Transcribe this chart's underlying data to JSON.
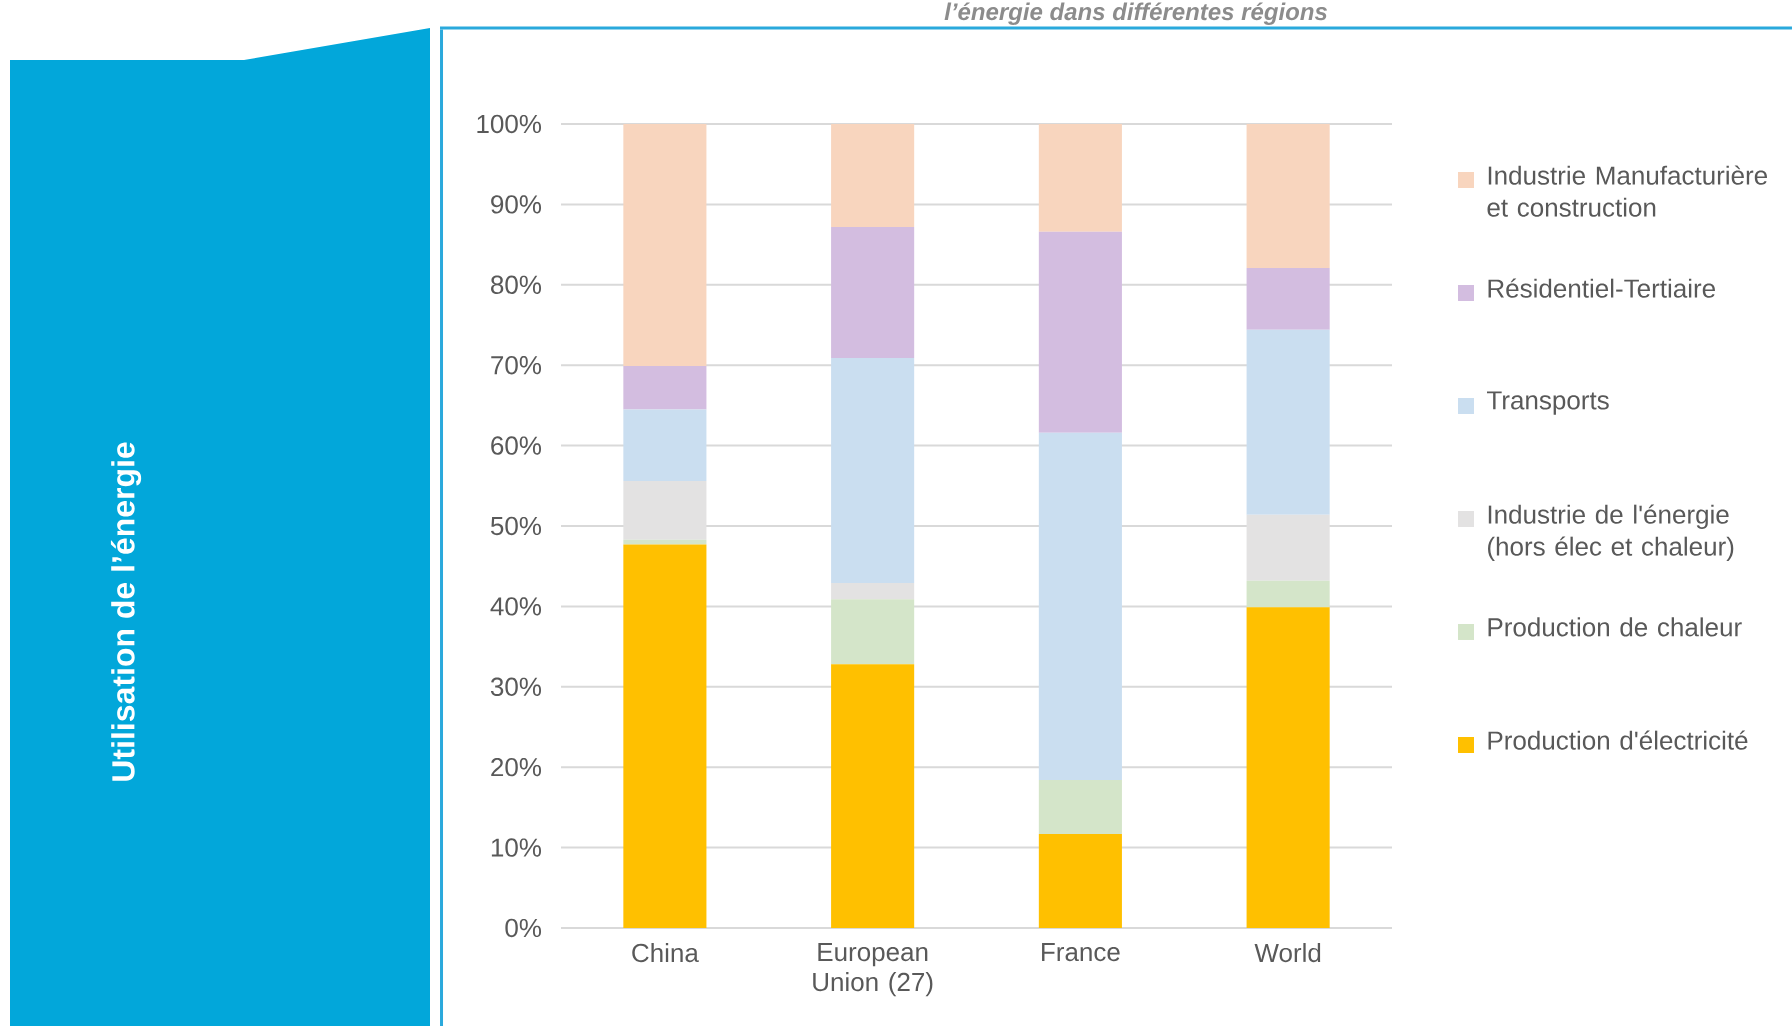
{
  "chart_data": {
    "type": "bar",
    "stacked": true,
    "title": "l’énergie dans différentes régions",
    "annotations": [
      "Utilisation de l’énergie"
    ],
    "categories": [
      "China",
      "European Union (27)",
      "France",
      "World"
    ],
    "series": [
      {
        "name": "Production d'électricité",
        "color": "#ffc000",
        "values": [
          47.7,
          32.8,
          11.7,
          39.9
        ]
      },
      {
        "name": "Production de chaleur",
        "color": "#d4e5c9",
        "values": [
          0.6,
          8.1,
          6.7,
          3.3
        ]
      },
      {
        "name": "Industrie de l'énergie (hors élec et chaleur)",
        "color": "#e3e2e2",
        "values": [
          7.3,
          2.0,
          0,
          8.2
        ]
      },
      {
        "name": "Transports",
        "color": "#cadef0",
        "values": [
          8.9,
          28.0,
          43.2,
          23.0
        ]
      },
      {
        "name": "Résidentiel-Tertiaire",
        "color": "#d3bde0",
        "values": [
          5.4,
          16.3,
          25.0,
          7.7
        ]
      },
      {
        "name": "Industrie Manufacturière et construction",
        "color": "#f8d5be",
        "values": [
          30.1,
          12.8,
          13.4,
          17.9
        ]
      }
    ],
    "ylim": [
      0,
      100
    ],
    "yticks": [
      {
        "value": 0,
        "label": "0%"
      },
      {
        "value": 10,
        "label": "10%"
      },
      {
        "value": 20,
        "label": "20%"
      },
      {
        "value": 30,
        "label": "30%"
      },
      {
        "value": 40,
        "label": "40%"
      },
      {
        "value": 50,
        "label": "50%"
      },
      {
        "value": 60,
        "label": "60%"
      },
      {
        "value": 70,
        "label": "70%"
      },
      {
        "value": 80,
        "label": "80%"
      },
      {
        "value": 90,
        "label": "90%"
      },
      {
        "value": 100,
        "label": "100%"
      }
    ],
    "grid": "y",
    "legend": "right"
  }
}
